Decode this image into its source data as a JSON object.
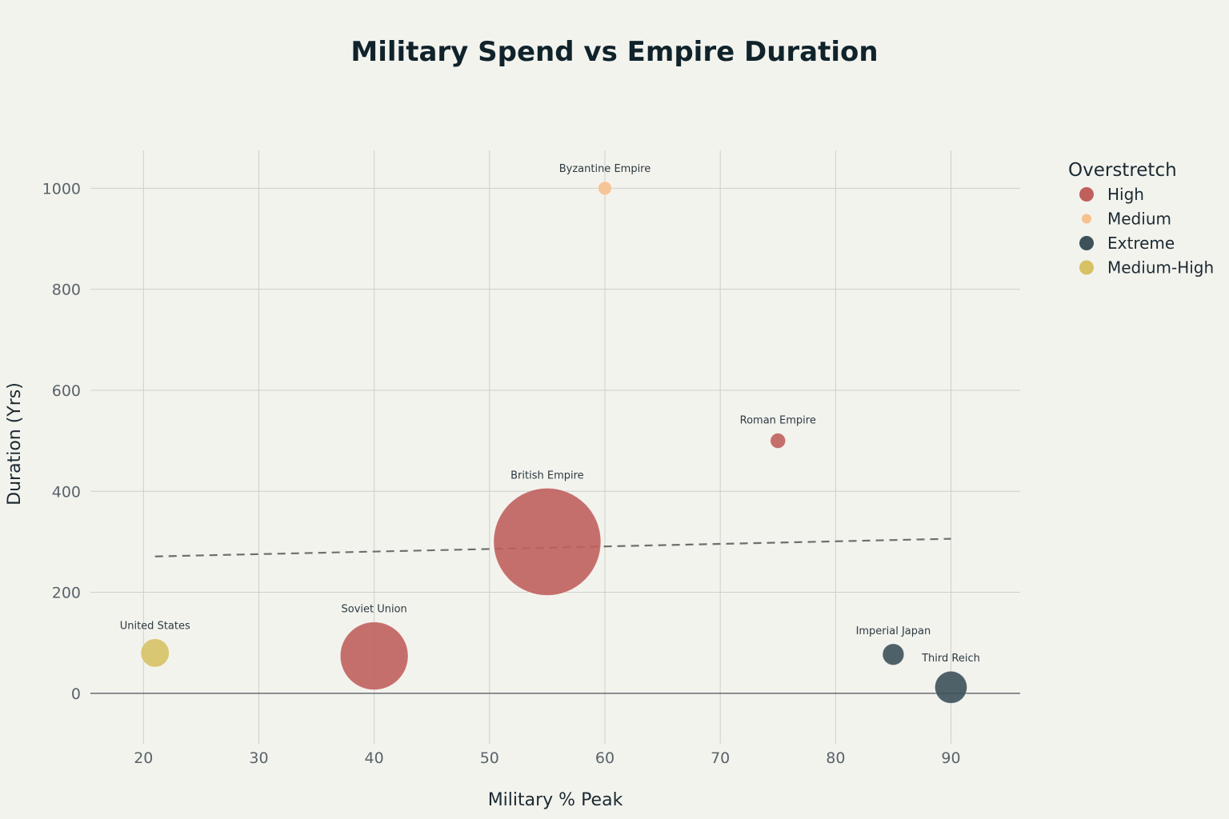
{
  "chart_data": {
    "type": "scatter",
    "title": "Military Spend vs Empire Duration",
    "xlabel": "Military % Peak",
    "ylabel": "Duration (Yrs)",
    "xlim": [
      15.4,
      96
    ],
    "ylim": [
      -100,
      1075
    ],
    "x_ticks": [
      20,
      30,
      40,
      50,
      60,
      70,
      80,
      90
    ],
    "y_ticks": [
      0,
      200,
      400,
      600,
      800,
      1000
    ],
    "grid": true,
    "legend": {
      "title": "Overstretch",
      "placement": "top-right",
      "entries": [
        {
          "name": "High",
          "color": "#c0605d"
        },
        {
          "name": "Medium",
          "color": "#f7c18e"
        },
        {
          "name": "Extreme",
          "color": "#3d5159"
        },
        {
          "name": "Medium-High",
          "color": "#d6c265"
        }
      ]
    },
    "points": [
      {
        "label": "Byzantine Empire",
        "x": 60,
        "y": 1000,
        "size": 1,
        "group": "Medium"
      },
      {
        "label": "Roman Empire",
        "x": 75,
        "y": 500,
        "size": 2,
        "group": "High"
      },
      {
        "label": "British Empire",
        "x": 55,
        "y": 300,
        "size": 100,
        "group": "High"
      },
      {
        "label": "Soviet Union",
        "x": 40,
        "y": 74,
        "size": 40,
        "group": "High"
      },
      {
        "label": "United States",
        "x": 21,
        "y": 80,
        "size": 7,
        "group": "Medium-High"
      },
      {
        "label": "Imperial Japan",
        "x": 85,
        "y": 77,
        "size": 4,
        "group": "Extreme"
      },
      {
        "label": "Third Reich",
        "x": 90,
        "y": 12,
        "size": 9,
        "group": "Extreme"
      }
    ],
    "trendline": {
      "style": "dashed",
      "from": [
        21,
        271
      ],
      "to": [
        90,
        306
      ]
    }
  }
}
